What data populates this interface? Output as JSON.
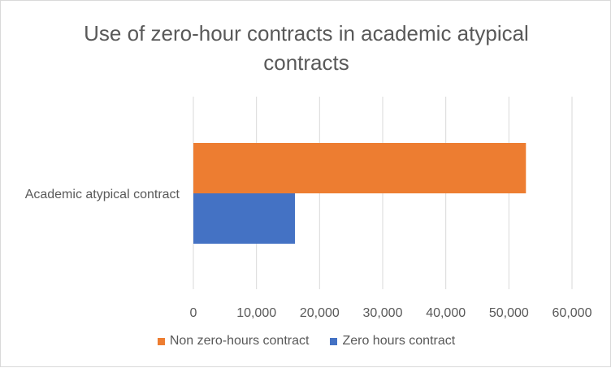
{
  "chart_data": {
    "type": "bar",
    "orientation": "horizontal",
    "title_lines": [
      "Use of zero-hour contracts in academic atypical",
      "contracts"
    ],
    "categories": [
      "Academic atypical contract"
    ],
    "series": [
      {
        "name": "Non zero-hours contract",
        "values": [
          52700
        ],
        "color": "#ED7D31"
      },
      {
        "name": "Zero hours contract",
        "values": [
          16100
        ],
        "color": "#4472C4"
      }
    ],
    "xlim": [
      0,
      60000
    ],
    "xticks": [
      0,
      10000,
      20000,
      30000,
      40000,
      50000,
      60000
    ],
    "tick_labels": [
      "0",
      "10,000",
      "20,000",
      "30,000",
      "40,000",
      "50,000",
      "60,000"
    ],
    "grid": true,
    "legend_position": "bottom"
  }
}
